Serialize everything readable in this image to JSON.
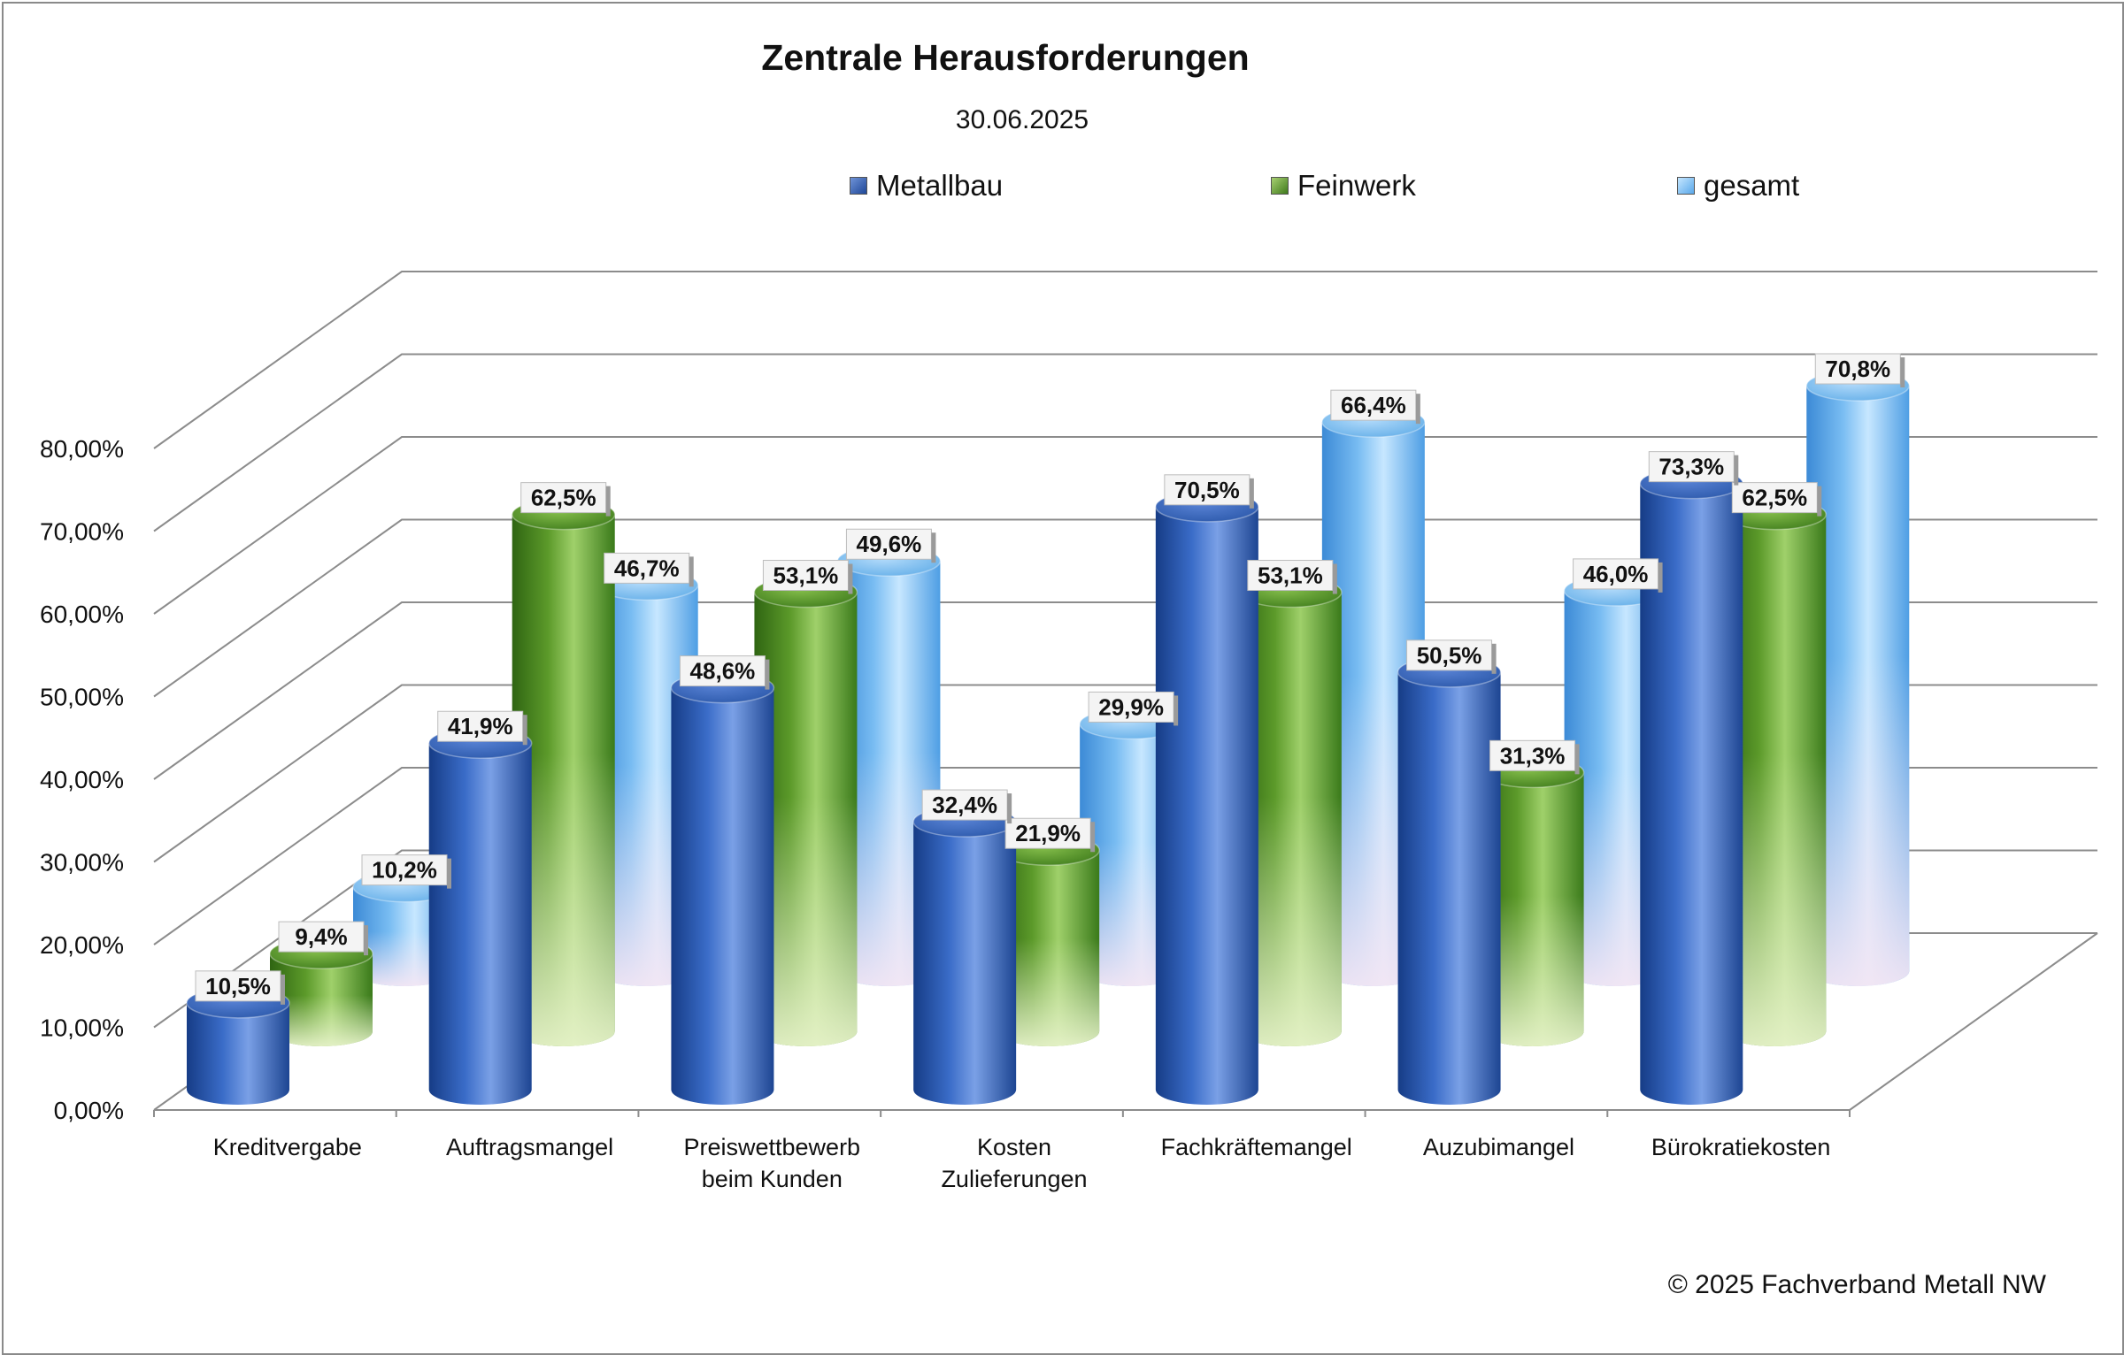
{
  "chart_data": {
    "type": "bar",
    "title": "Zentrale Herausforderungen",
    "subtitle": "30.06.2025",
    "categories": [
      [
        "Kreditvergabe"
      ],
      [
        "Auftragsmangel"
      ],
      [
        "Preiswettbewerb",
        "beim Kunden"
      ],
      [
        "Kosten",
        "Zulieferungen"
      ],
      [
        "Fachkräftemangel"
      ],
      [
        "Auzubimangel"
      ],
      [
        "Bürokratiekosten"
      ]
    ],
    "series": [
      {
        "name": "Metallbau",
        "values": [
          10.5,
          41.9,
          48.6,
          32.4,
          70.5,
          50.5,
          73.3
        ],
        "labels": [
          "10,5%",
          "41,9%",
          "48,6%",
          "32,4%",
          "70,5%",
          "50,5%",
          "73,3%"
        ]
      },
      {
        "name": "Feinwerk",
        "values": [
          9.4,
          62.5,
          53.1,
          21.9,
          53.1,
          31.3,
          62.5
        ],
        "labels": [
          "9,4%",
          "62,5%",
          "53,1%",
          "21,9%",
          "53,1%",
          "31,3%",
          "62,5%"
        ]
      },
      {
        "name": "gesamt",
        "values": [
          10.2,
          46.7,
          49.6,
          29.9,
          66.4,
          46.0,
          70.8
        ],
        "labels": [
          "10,2%",
          "46,7%",
          "49,6%",
          "29,9%",
          "66,4%",
          "46,0%",
          "70,8%"
        ]
      }
    ],
    "yticks": [
      "0,00%",
      "10,00%",
      "20,00%",
      "30,00%",
      "40,00%",
      "50,00%",
      "60,00%",
      "70,00%",
      "80,00%"
    ],
    "ylim": [
      0,
      80
    ],
    "legend_position": "top",
    "colors": {
      "Metallbau": "#2f5fb8",
      "Feinwerk": "#5a9a2a",
      "gesamt": "#7cc0f2"
    }
  },
  "copyright": "© 2025 Fachverband Metall NW"
}
